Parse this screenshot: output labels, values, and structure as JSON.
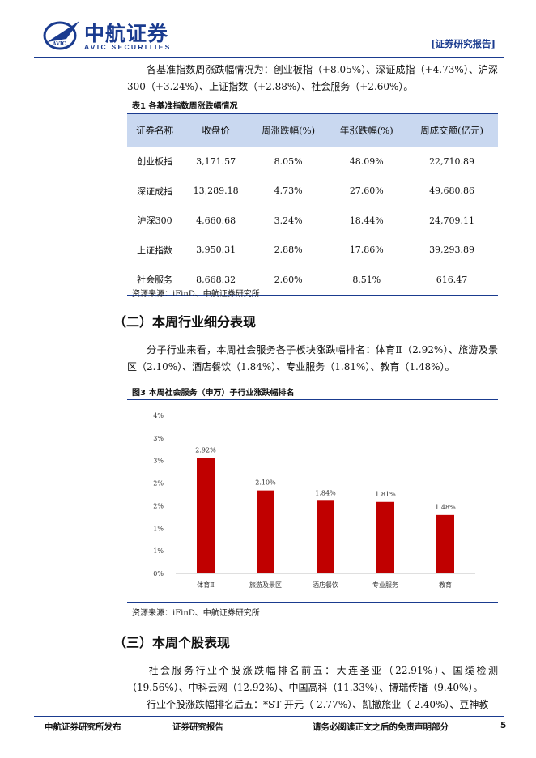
{
  "header": {
    "logo_text": "中航证券",
    "logo_sub": "AVIC SECURITIES",
    "logo_badge": "AVIC",
    "report_tag": "[证券研究报告]"
  },
  "intro_paragraph": "各基准指数周涨跌幅情况为：创业板指（+8.05%）、深证成指（+4.73%）、沪深300（+3.24%）、上证指数（+2.88%）、社会服务（+2.60%）。",
  "table1": {
    "caption": "表1  各基准指数周涨跌幅情况",
    "headers": [
      "证券名称",
      "收盘价",
      "周涨跌幅(%)",
      "年涨跌幅(%)",
      "周成交额(亿元)"
    ],
    "rows": [
      [
        "创业板指",
        "3,171.57",
        "8.05%",
        "48.09%",
        "22,710.89"
      ],
      [
        "深证成指",
        "13,289.18",
        "4.73%",
        "27.60%",
        "49,680.86"
      ],
      [
        "沪深300",
        "4,660.68",
        "3.24%",
        "18.44%",
        "24,709.11"
      ],
      [
        "上证指数",
        "3,950.31",
        "2.88%",
        "17.86%",
        "39,293.89"
      ],
      [
        "社会服务",
        "8,668.32",
        "2.60%",
        "8.51%",
        "616.47"
      ]
    ],
    "source": "资源来源：iFinD、中航证券研究所"
  },
  "section2": {
    "title": "（二）本周行业细分表现",
    "paragraph": "分子行业来看，本周社会服务各子板块涨跌幅排名：体育Ⅱ（2.92%）、旅游及景区（2.10%）、酒店餐饮（1.84%）、专业服务（1.81%）、教育（1.48%）。"
  },
  "figure3": {
    "caption": "图3  本周社会服务（申万）子行业涨跌幅排名",
    "source": "资源来源：iFinD、中航证券研究所"
  },
  "chart_data": {
    "type": "bar",
    "categories": [
      "体育Ⅱ",
      "旅游及景区",
      "酒店餐饮",
      "专业服务",
      "教育"
    ],
    "values": [
      2.92,
      2.1,
      1.84,
      1.81,
      1.48
    ],
    "data_labels": [
      "2.92%",
      "2.10%",
      "1.84%",
      "1.81%",
      "1.48%"
    ],
    "y_tick_labels": [
      "0%",
      "1%",
      "1%",
      "2%",
      "2%",
      "3%",
      "3%",
      "4%"
    ],
    "ylim": [
      0,
      4
    ],
    "bar_color": "#c00000",
    "grid": false,
    "title": "",
    "xlabel": "",
    "ylabel": ""
  },
  "section3": {
    "title": "（三）本周个股表现",
    "paragraph1": "社会服务行业个股涨跌幅排名前五：大连圣亚（22.91%）、国缆检测（19.56%）、中科云网（12.92%）、中国高科（11.33%）、博瑞传播（9.40%）。",
    "paragraph2": "行业个股涨跌幅排名后五：*ST 开元（-2.77%）、凯撒旅业（-2.40%）、豆神教"
  },
  "footer": {
    "left": "中航证券研究所发布",
    "middle": "证券研究报告",
    "right": "请务必阅读正文之后的免责声明部分",
    "page": "5"
  },
  "colors": {
    "brand": "#1a3b8f",
    "table_header": "#c9d8f0",
    "bar": "#c00000"
  }
}
